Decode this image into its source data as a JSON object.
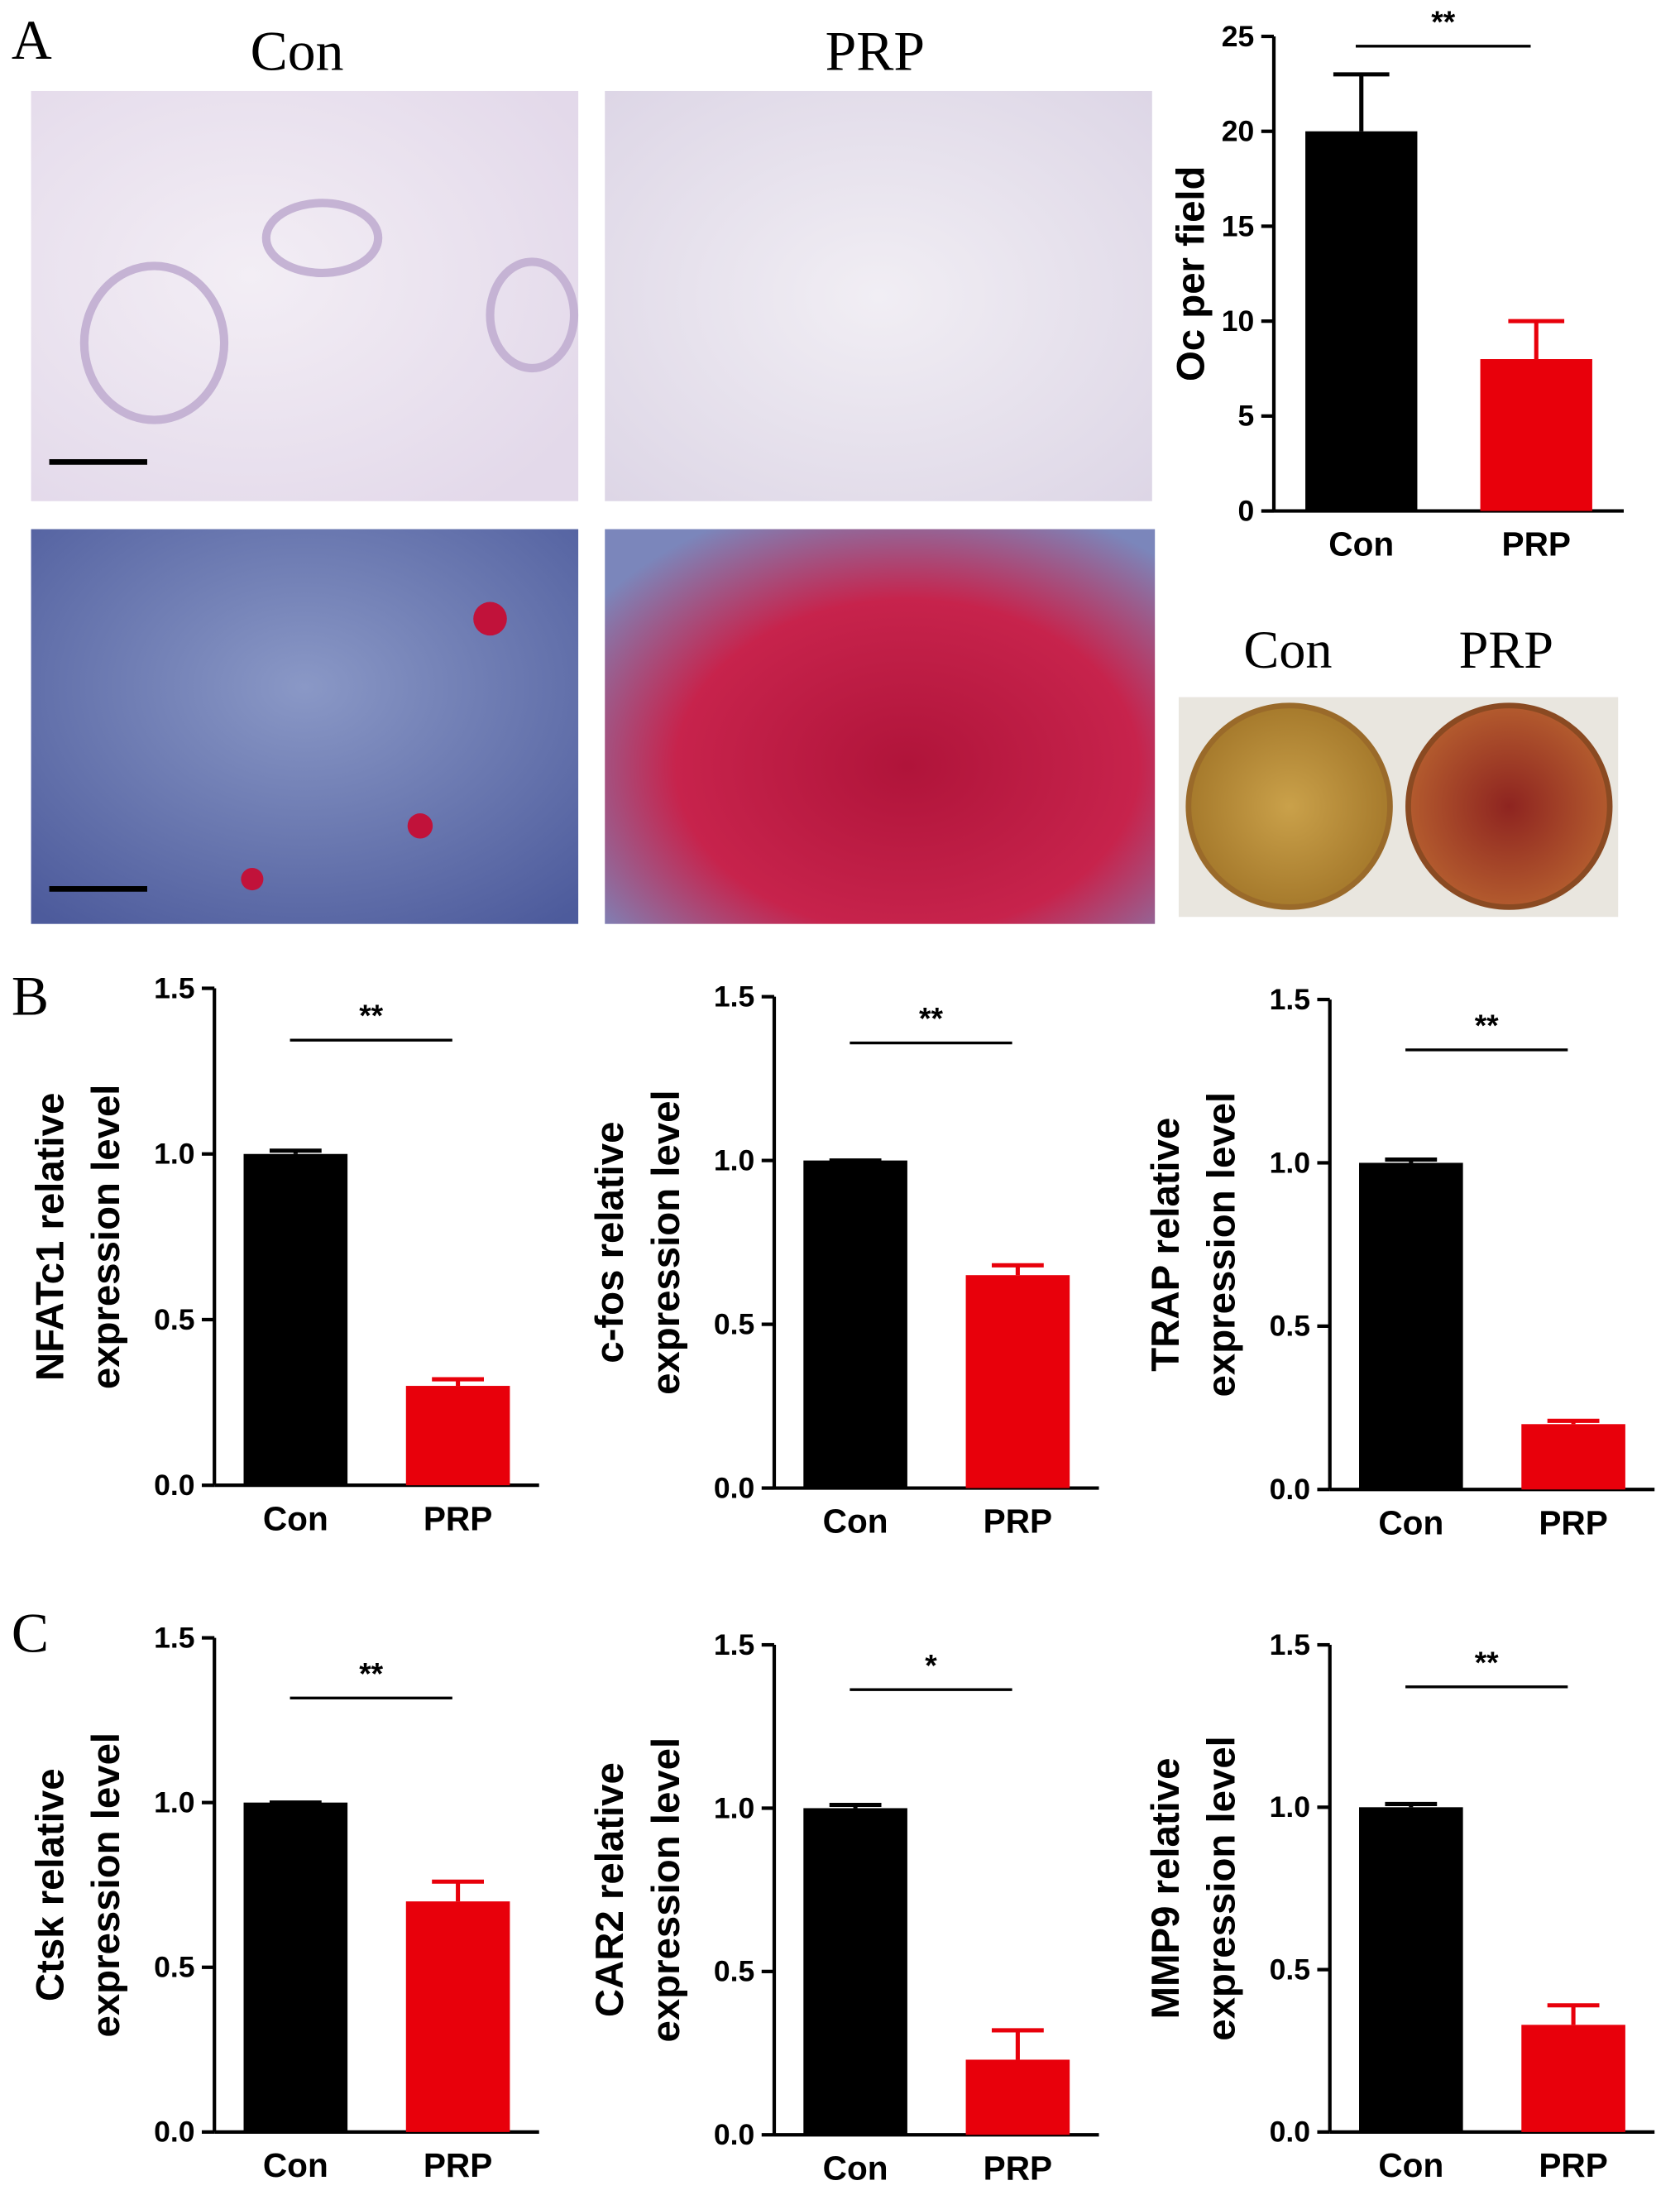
{
  "panel_labels": [
    "A",
    "B",
    "C"
  ],
  "image_labels": {
    "micrograph": [
      "Con",
      "PRP"
    ],
    "plate": [
      "Con",
      "PRP"
    ]
  },
  "chart_data": [
    {
      "type": "bar",
      "ylabel": [
        "Oc per field"
      ],
      "categories": [
        "Con",
        "PRP"
      ],
      "values": [
        20,
        8
      ],
      "errors": [
        3,
        2
      ],
      "colors": [
        "#000000",
        "#e8000b"
      ],
      "ylim": [
        0,
        25
      ],
      "yticks": [
        0,
        5,
        10,
        15,
        20,
        25
      ],
      "annotation": "**"
    },
    {
      "type": "bar",
      "ylabel": [
        "NFATc1 relative",
        "expression level"
      ],
      "categories": [
        "Con",
        "PRP"
      ],
      "values": [
        1.0,
        0.3
      ],
      "errors": [
        0.01,
        0.02
      ],
      "colors": [
        "#000000",
        "#e8000b"
      ],
      "ylim": [
        0,
        1.5
      ],
      "yticks": [
        {
          "value": 0,
          "label": "0.0"
        },
        {
          "value": 0.5,
          "label": "0.5"
        },
        {
          "value": 1,
          "label": "1.0"
        },
        {
          "value": 1.5,
          "label": "1.5"
        }
      ],
      "annotation": "**"
    },
    {
      "type": "bar",
      "ylabel": [
        "c-fos relative",
        "expression level"
      ],
      "categories": [
        "Con",
        "PRP"
      ],
      "values": [
        1.0,
        0.65
      ],
      "errors": [
        0,
        0.03
      ],
      "colors": [
        "#000000",
        "#e8000b"
      ],
      "ylim": [
        0,
        1.5
      ],
      "yticks": [
        {
          "value": 0,
          "label": "0.0"
        },
        {
          "value": 0.5,
          "label": "0.5"
        },
        {
          "value": 1,
          "label": "1.0"
        },
        {
          "value": 1.5,
          "label": "1.5"
        }
      ],
      "annotation": "**"
    },
    {
      "type": "bar",
      "ylabel": [
        "TRAP relative",
        "expression level"
      ],
      "categories": [
        "Con",
        "PRP"
      ],
      "values": [
        1.0,
        0.2
      ],
      "errors": [
        0.01,
        0.01
      ],
      "colors": [
        "#000000",
        "#e8000b"
      ],
      "ylim": [
        0,
        1.5
      ],
      "yticks": [
        {
          "value": 0,
          "label": "0.0"
        },
        {
          "value": 0.5,
          "label": "0.5"
        },
        {
          "value": 1,
          "label": "1.0"
        },
        {
          "value": 1.5,
          "label": "1.5"
        }
      ],
      "annotation": "**"
    },
    {
      "type": "bar",
      "ylabel": [
        "Ctsk relative",
        "expression level"
      ],
      "categories": [
        "Con",
        "PRP"
      ],
      "values": [
        1.0,
        0.7
      ],
      "errors": [
        0,
        0.06
      ],
      "colors": [
        "#000000",
        "#e8000b"
      ],
      "ylim": [
        0,
        1.5
      ],
      "yticks": [
        {
          "value": 0,
          "label": "0.0"
        },
        {
          "value": 0.5,
          "label": "0.5"
        },
        {
          "value": 1,
          "label": "1.0"
        },
        {
          "value": 1.5,
          "label": "1.5"
        }
      ],
      "annotation": "**"
    },
    {
      "type": "bar",
      "ylabel": [
        "CAR2 relative",
        "expression level"
      ],
      "categories": [
        "Con",
        "PRP"
      ],
      "values": [
        1.0,
        0.23
      ],
      "errors": [
        0.01,
        0.09
      ],
      "colors": [
        "#000000",
        "#e8000b"
      ],
      "ylim": [
        0,
        1.5
      ],
      "yticks": [
        {
          "value": 0,
          "label": "0.0"
        },
        {
          "value": 0.5,
          "label": "0.5"
        },
        {
          "value": 1,
          "label": "1.0"
        },
        {
          "value": 1.5,
          "label": "1.5"
        }
      ],
      "annotation": "*"
    },
    {
      "type": "bar",
      "ylabel": [
        "MMP9 relative",
        "expression level"
      ],
      "categories": [
        "Con",
        "PRP"
      ],
      "values": [
        1.0,
        0.33
      ],
      "errors": [
        0.01,
        0.06
      ],
      "colors": [
        "#000000",
        "#e8000b"
      ],
      "ylim": [
        0,
        1.5
      ],
      "yticks": [
        {
          "value": 0,
          "label": "0.0"
        },
        {
          "value": 0.5,
          "label": "0.5"
        },
        {
          "value": 1,
          "label": "1.0"
        },
        {
          "value": 1.5,
          "label": "1.5"
        }
      ],
      "annotation": "**"
    }
  ]
}
